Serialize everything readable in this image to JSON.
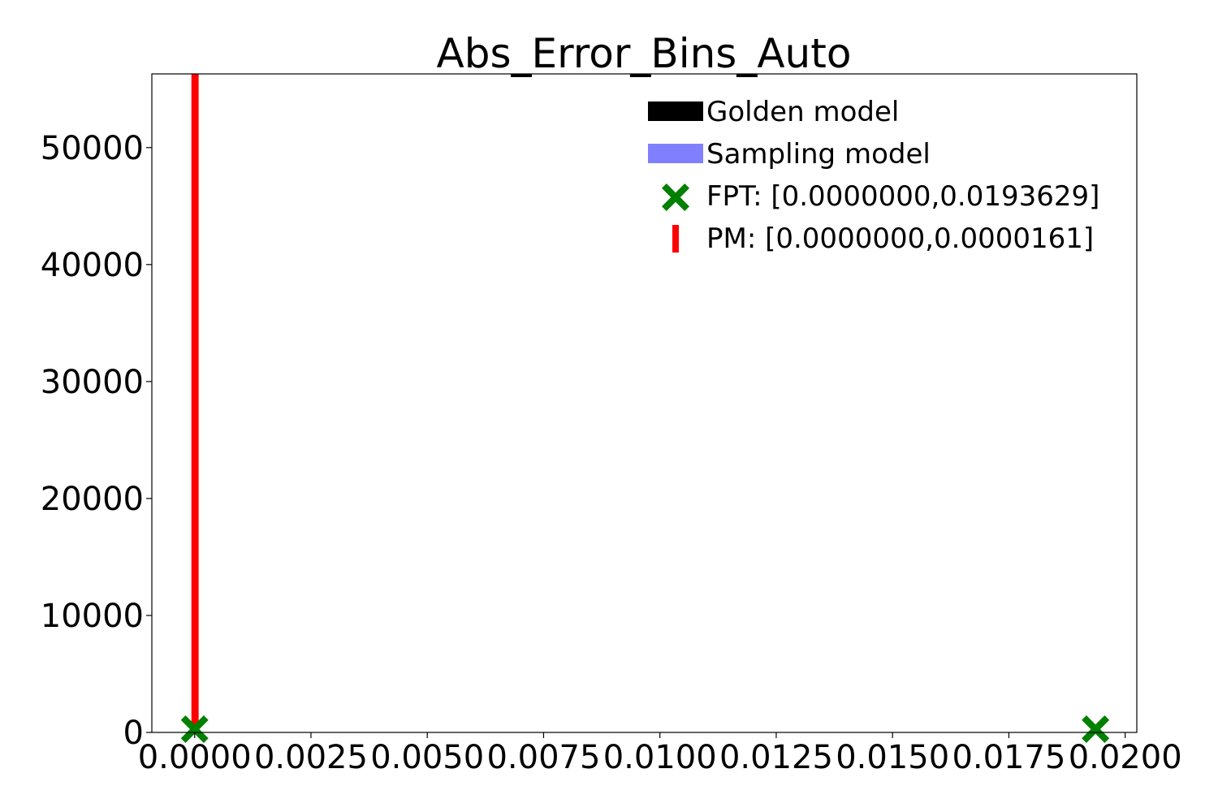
{
  "chart_data": {
    "type": "bar",
    "title": "Abs_Error_Bins_Auto",
    "xlabel": "",
    "ylabel": "",
    "xlim": [
      -0.00092,
      0.02025
    ],
    "ylim": [
      0,
      56300
    ],
    "x_ticks": [
      0,
      0.0025,
      0.005,
      0.0075,
      0.01,
      0.0125,
      0.015,
      0.0175,
      0.02
    ],
    "x_tick_labels": [
      "0.0000",
      "0.0025",
      "0.0050",
      "0.0075",
      "0.0100",
      "0.0125",
      "0.0150",
      "0.0175",
      "0.0200"
    ],
    "y_ticks": [
      0,
      10000,
      20000,
      30000,
      40000,
      50000
    ],
    "y_tick_labels": [
      "0",
      "10000",
      "20000",
      "30000",
      "40000",
      "50000"
    ],
    "grid": false,
    "legend_position": "top-right",
    "series": [
      {
        "name": "Golden model",
        "color": "#000000",
        "marker": "bar",
        "x": [],
        "values": []
      },
      {
        "name": "Sampling model",
        "color": "#8080ff",
        "marker": "bar",
        "x": [],
        "values": []
      },
      {
        "name": "FPT: [0.0000000,0.0193629]",
        "color": "#008000",
        "marker": "X",
        "x": [
          0.0,
          0.0193629
        ],
        "values": [
          0,
          0
        ]
      },
      {
        "name": "PM: [0.0000000,0.0000161]",
        "color": "#ff0000",
        "marker": "vline",
        "x": [
          0.0,
          1.61e-05
        ],
        "values": [
          56300,
          56300
        ]
      }
    ]
  }
}
